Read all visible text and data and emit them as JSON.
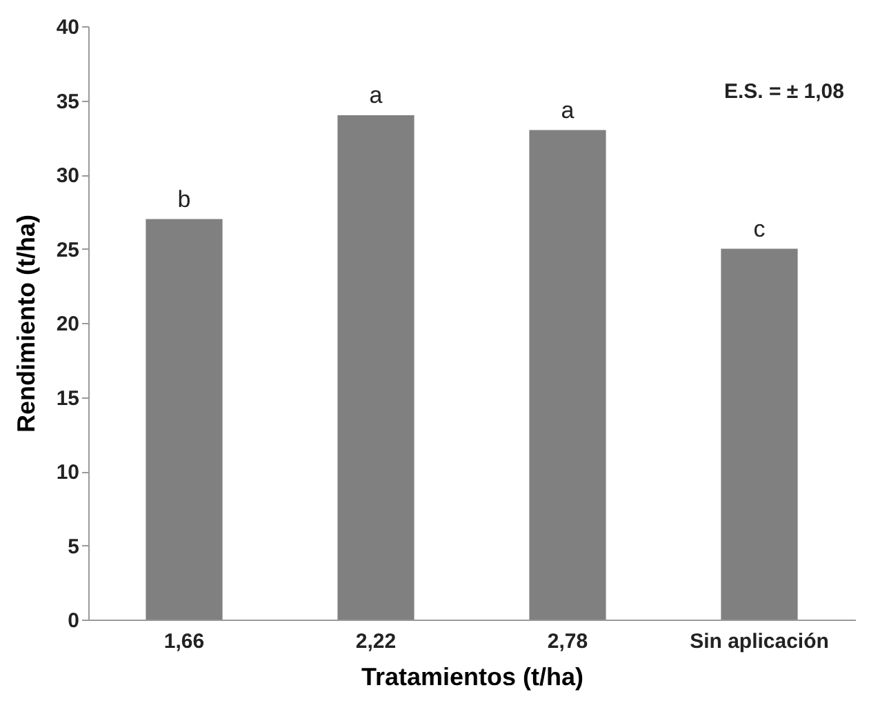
{
  "chart_data": {
    "type": "bar",
    "xlabel": "Tratamientos (t/ha)",
    "ylabel": "Rendimiento (t/ha)",
    "categories": [
      "1,66",
      "2,22",
      "2,78",
      "Sin aplicación"
    ],
    "values": [
      27,
      34,
      33,
      25
    ],
    "color": "#808080",
    "ylim": [
      0,
      40
    ],
    "yticks": [
      0,
      5,
      10,
      15,
      20,
      25,
      30,
      35,
      40
    ],
    "grid": false,
    "annotations": [
      {
        "text": "b",
        "x": "1,66",
        "y": 27
      },
      {
        "text": "a",
        "x": "2,22",
        "y": 34
      },
      {
        "text": "a",
        "x": "2,78",
        "y": 33
      },
      {
        "text": "c",
        "x": "Sin aplicación",
        "y": 25
      },
      "E.S. = ± 1,08"
    ]
  }
}
